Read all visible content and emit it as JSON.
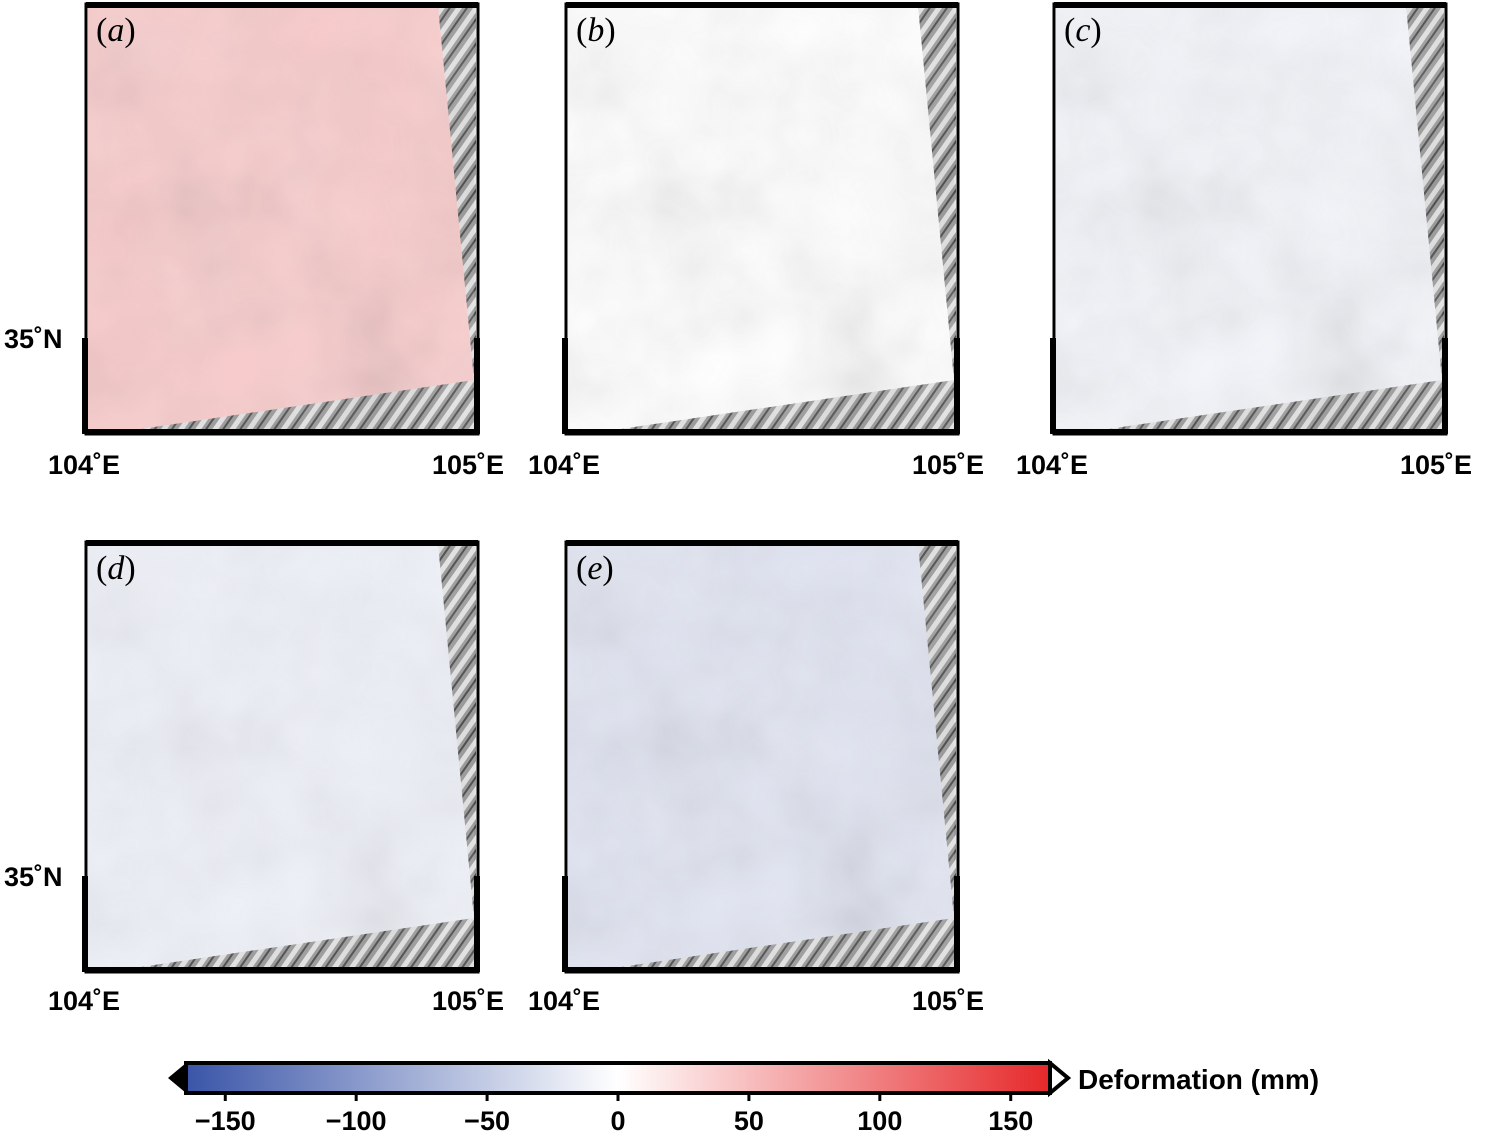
{
  "panels": [
    {
      "id": "a",
      "letter": "a",
      "lon_labels": [
        "104˚E",
        "105˚E"
      ],
      "lat_label": "35˚N",
      "mean_deformation_mm": 40
    },
    {
      "id": "b",
      "letter": "b",
      "lon_labels": [
        "104˚E",
        "105˚E"
      ],
      "lat_label": "",
      "mean_deformation_mm": 0
    },
    {
      "id": "c",
      "letter": "c",
      "lon_labels": [
        "104˚E",
        "105˚E"
      ],
      "lat_label": "",
      "mean_deformation_mm": -10
    },
    {
      "id": "d",
      "letter": "d",
      "lon_labels": [
        "104˚E",
        "105˚E"
      ],
      "lat_label": "35˚N",
      "mean_deformation_mm": -15
    },
    {
      "id": "e",
      "letter": "e",
      "lon_labels": [
        "104˚E",
        "105˚E"
      ],
      "lat_label": "",
      "mean_deformation_mm": -25
    }
  ],
  "colorbar": {
    "title": "Deformation (mm)",
    "min": -165,
    "max": 165,
    "ticks": [
      "−150",
      "−100",
      "−50",
      "0",
      "50",
      "100",
      "150"
    ],
    "tick_values": [
      -150,
      -100,
      -50,
      0,
      50,
      100,
      150
    ],
    "colors": {
      "low": "#3a55a8",
      "mid": "#ffffff",
      "high": "#e6282a"
    }
  },
  "colors": {
    "hillshade": "#8a8a8a",
    "frame": "#000000"
  }
}
